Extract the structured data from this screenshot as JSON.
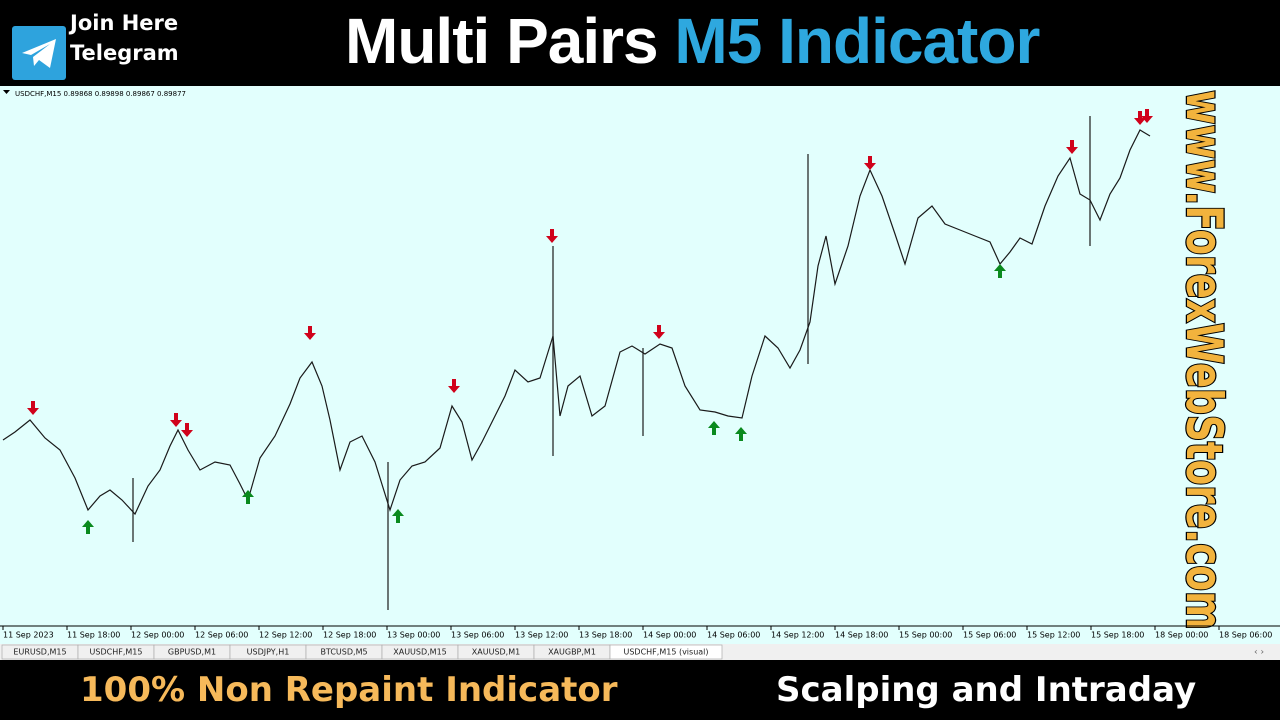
{
  "header": {
    "join_lines": [
      "Join Here",
      "Telegram"
    ],
    "title": "Multi Pairs",
    "title_highlight": "M5 Indicator"
  },
  "chart": {
    "symbol_info": "USDCHF,M15  0.89868 0.89898 0.89867 0.89877",
    "time_labels": [
      "11 Sep 2023",
      "11 Sep 18:00",
      "12 Sep 00:00",
      "12 Sep 06:00",
      "12 Sep 12:00",
      "12 Sep 18:00",
      "13 Sep 00:00",
      "13 Sep 06:00",
      "13 Sep 12:00",
      "13 Sep 18:00",
      "14 Sep 00:00",
      "14 Sep 06:00",
      "14 Sep 12:00",
      "14 Sep 18:00",
      "15 Sep 00:00",
      "15 Sep 06:00",
      "15 Sep 12:00",
      "15 Sep 18:00",
      "18 Sep 00:00",
      "18 Sep 06:00"
    ],
    "watermark": "www.ForexWebStore.com"
  },
  "tabs": [
    "EURUSD,M15",
    "USDCHF,M15",
    "GBPUSD,M1",
    "USDJPY,H1",
    "BTCUSD,M5",
    "XAUUSD,M15",
    "XAUUSD,M1",
    "XAUGBP,M1",
    "USDCHF,M15 (visual)"
  ],
  "footer": {
    "left": "100% Non Repaint Indicator",
    "right": "Scalping and Intraday"
  }
}
